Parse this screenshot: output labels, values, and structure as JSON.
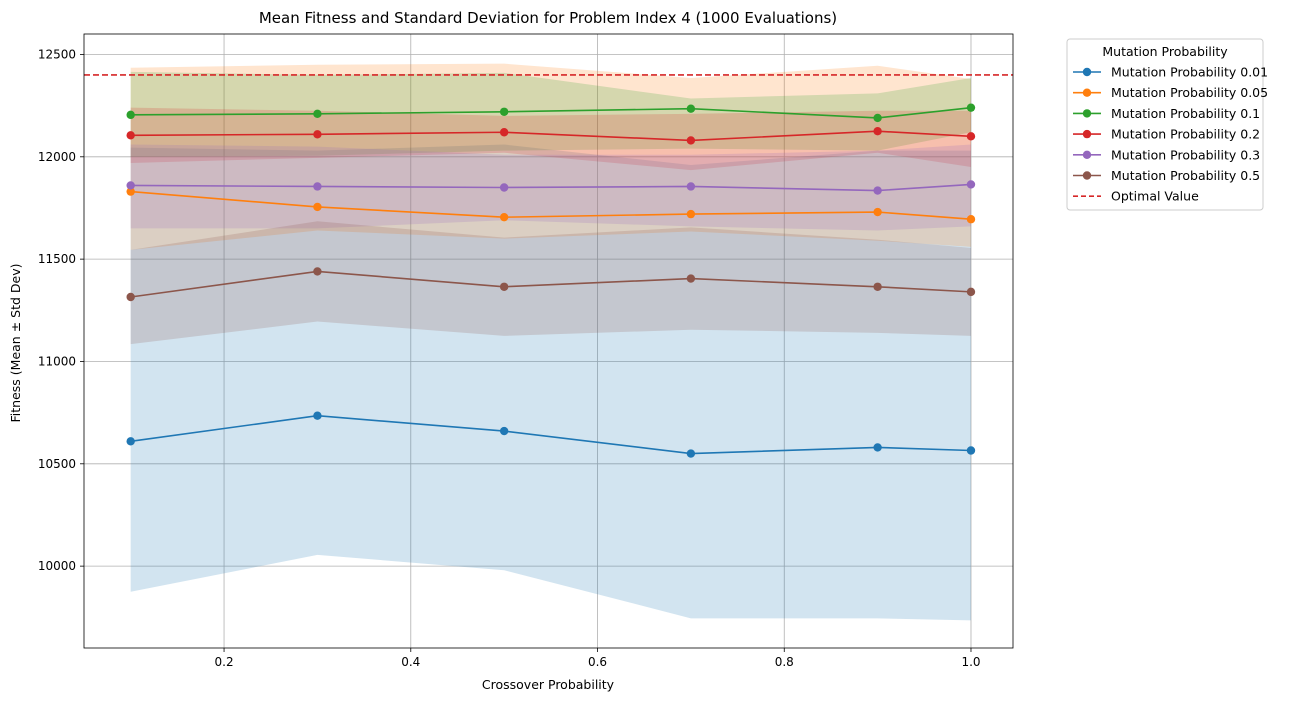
{
  "chart_data": {
    "type": "line",
    "title": "Mean Fitness and Standard Deviation for Problem Index 4 (1000 Evaluations)",
    "xlabel": "Crossover Probability",
    "ylabel": "Fitness (Mean ± Std Dev)",
    "xlim": [
      0.05,
      1.045
    ],
    "ylim": [
      9600,
      12600
    ],
    "xticks": [
      0.2,
      0.4,
      0.6,
      0.8,
      1.0
    ],
    "xtick_labels": [
      "0.2",
      "0.4",
      "0.6",
      "0.8",
      "1.0"
    ],
    "yticks": [
      10000,
      10500,
      11000,
      11500,
      12000,
      12500
    ],
    "ytick_labels": [
      "10000",
      "10500",
      "11000",
      "11500",
      "12000",
      "12500"
    ],
    "grid": true,
    "legend_title": "Mutation Probability",
    "legend_position": "outside upper right",
    "x": [
      0.1,
      0.3,
      0.5,
      0.7,
      0.9,
      1.0
    ],
    "series": [
      {
        "name": "Mutation Probability 0.01",
        "color": "#1f77b4",
        "mean": [
          10610,
          10735,
          10660,
          10550,
          10580,
          10565
        ],
        "upper": [
          12045,
          12030,
          12060,
          11960,
          12030,
          12030
        ],
        "lower": [
          9875,
          10055,
          9980,
          9745,
          9745,
          9735
        ]
      },
      {
        "name": "Mutation Probability 0.05",
        "color": "#ff7f0e",
        "mean": [
          11830,
          11755,
          11705,
          11720,
          11730,
          11695
        ],
        "upper": [
          12435,
          12450,
          12455,
          12385,
          12445,
          12380
        ],
        "lower": [
          11545,
          11640,
          11600,
          11635,
          11590,
          11560
        ]
      },
      {
        "name": "Mutation Probability 0.1",
        "color": "#2ca02c",
        "mean": [
          12205,
          12210,
          12220,
          12235,
          12190,
          12240
        ],
        "upper": [
          12415,
          12400,
          12410,
          12285,
          12310,
          12385
        ],
        "lower": [
          12000,
          12005,
          12030,
          12040,
          12030,
          12120
        ]
      },
      {
        "name": "Mutation Probability 0.2",
        "color": "#d62728",
        "mean": [
          12105,
          12110,
          12120,
          12080,
          12125,
          12100
        ],
        "upper": [
          12240,
          12225,
          12200,
          12210,
          12225,
          12225
        ],
        "lower": [
          11970,
          11995,
          12020,
          11935,
          12020,
          11950
        ]
      },
      {
        "name": "Mutation Probability 0.3",
        "color": "#9467bd",
        "mean": [
          11860,
          11855,
          11850,
          11855,
          11835,
          11865
        ],
        "upper": [
          12060,
          12050,
          12010,
          12010,
          12030,
          12060
        ],
        "lower": [
          11650,
          11650,
          11690,
          11660,
          11640,
          11660
        ]
      },
      {
        "name": "Mutation Probability 0.5",
        "color": "#8c564b",
        "mean": [
          11315,
          11440,
          11365,
          11405,
          11365,
          11340
        ],
        "upper": [
          11545,
          11685,
          11605,
          11655,
          11595,
          11555
        ],
        "lower": [
          11085,
          11195,
          11125,
          11155,
          11140,
          11125
        ]
      }
    ],
    "reference_line": {
      "name": "Optimal Value",
      "y": 12400,
      "color": "#d62728",
      "style": "dashed"
    }
  }
}
